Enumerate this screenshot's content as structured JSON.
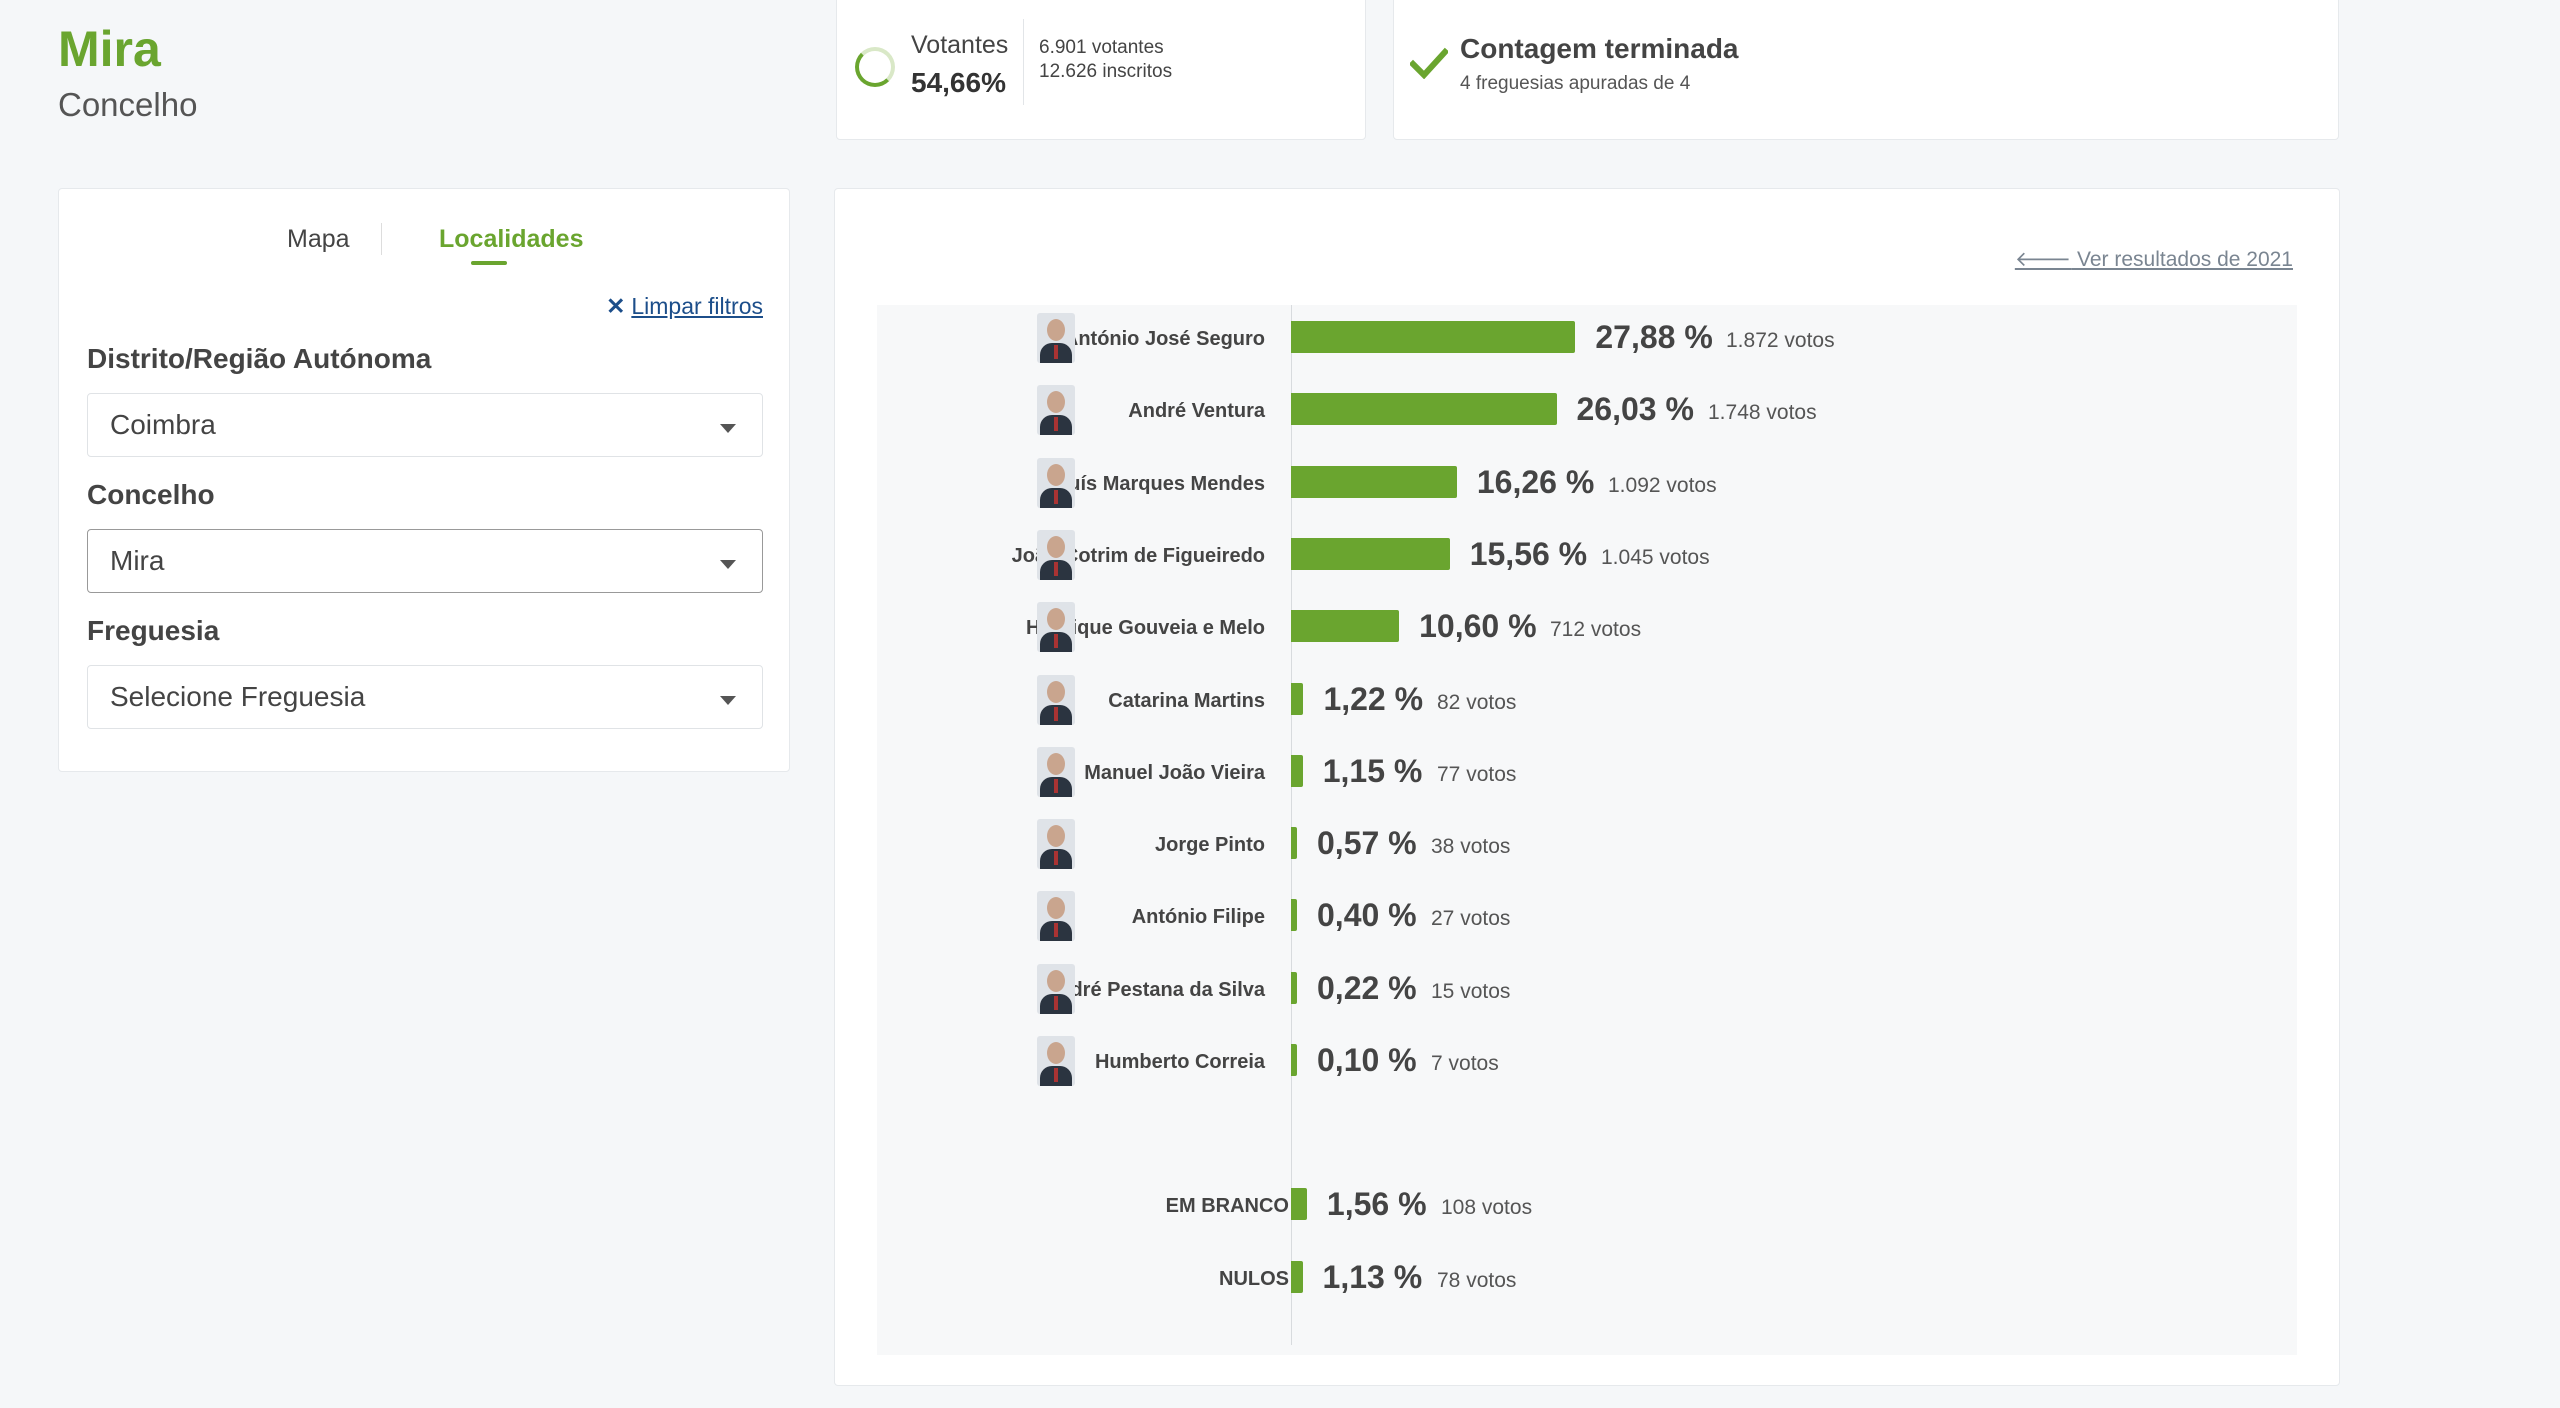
{
  "location": {
    "name": "Mira",
    "type": "Concelho"
  },
  "voters_card": {
    "label": "Votantes",
    "percentage": "54,66%",
    "voters_text": "6.901 votantes",
    "registered_text": "12.626 inscritos"
  },
  "count_card": {
    "title": "Contagem terminada",
    "subtitle": "4 freguesias apuradas de 4"
  },
  "filters": {
    "tabs": [
      {
        "label": "Mapa",
        "active": false
      },
      {
        "label": "Localidades",
        "active": true
      }
    ],
    "clear_label": "Limpar filtros",
    "district_label": "Distrito/Região Autónoma",
    "district_value": "Coimbra",
    "municipality_label": "Concelho",
    "municipality_value": "Mira",
    "parish_label": "Freguesia",
    "parish_value": "Selecione Freguesia"
  },
  "results": {
    "previous_link": "Ver resultados de 2021"
  },
  "chart_data": {
    "type": "bar",
    "orientation": "horizontal",
    "categories": [
      "António José Seguro",
      "André Ventura",
      "Luís Marques Mendes",
      "João Cotrim de Figueiredo",
      "Henrique Gouveia e Melo",
      "Catarina Martins",
      "Manuel João Vieira",
      "Jorge Pinto",
      "António Filipe",
      "André Pestana da Silva",
      "Humberto Correia",
      "EM BRANCO",
      "NULOS"
    ],
    "values": [
      27.88,
      26.03,
      16.26,
      15.56,
      10.6,
      1.22,
      1.15,
      0.57,
      0.4,
      0.22,
      0.1,
      1.56,
      1.13
    ],
    "pct_labels": [
      "27,88 %",
      "26,03 %",
      "16,26 %",
      "15,56 %",
      "10,60 %",
      "1,22 %",
      "1,15 %",
      "0,57 %",
      "0,40 %",
      "0,22 %",
      "0,10 %",
      "1,56 %",
      "1,13 %"
    ],
    "vote_labels": [
      "1.872 votos",
      "1.748 votos",
      "1.092 votos",
      "1.045 votos",
      "712 votos",
      "82 votos",
      "77 votos",
      "38 votos",
      "27 votos",
      "15 votos",
      "7 votos",
      "108 votos",
      "78 votos"
    ],
    "has_avatar": [
      true,
      true,
      true,
      true,
      true,
      true,
      true,
      true,
      true,
      true,
      true,
      false,
      false
    ],
    "bar_color": "#6aa52f"
  }
}
